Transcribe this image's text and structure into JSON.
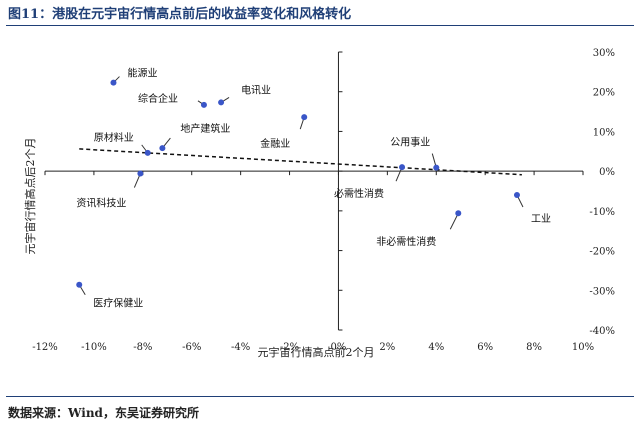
{
  "header": {
    "title": "图11：港股在元宇宙行情高点前后的收益率变化和风格转化"
  },
  "footer": {
    "source": "数据来源：Wind，东吴证券研究所"
  },
  "colors": {
    "title": "#1f3f77",
    "point": "#3a56c8",
    "axis": "#222222",
    "trend": "#111111"
  },
  "chart_data": {
    "type": "scatter",
    "title": "",
    "xlabel": "元宇宙行情高点前2个月",
    "ylabel": "元宇宙行情高点后2个月",
    "xlim": [
      -0.12,
      0.1
    ],
    "ylim": [
      -0.4,
      0.3
    ],
    "x_ticks": [
      "-12%",
      "-10%",
      "-8%",
      "-6%",
      "-4%",
      "-2%",
      "0%",
      "2%",
      "4%",
      "6%",
      "8%",
      "10%"
    ],
    "y_ticks": [
      "30%",
      "20%",
      "10%",
      "0%",
      "-10%",
      "-20%",
      "-30%",
      "-40%"
    ],
    "grid": false,
    "trendline": {
      "style": "dashed",
      "from": [
        -0.106,
        0.056
      ],
      "to": [
        0.075,
        -0.009
      ]
    },
    "points": [
      {
        "label": "能源业",
        "x": -0.092,
        "y": 0.223
      },
      {
        "label": "综合企业",
        "x": -0.055,
        "y": 0.167
      },
      {
        "label": "电讯业",
        "x": -0.048,
        "y": 0.173
      },
      {
        "label": "金融业",
        "x": -0.014,
        "y": 0.136
      },
      {
        "label": "原材料业",
        "x": -0.078,
        "y": 0.046
      },
      {
        "label": "地产建筑业",
        "x": -0.072,
        "y": 0.058
      },
      {
        "label": "资讯科技业",
        "x": -0.081,
        "y": -0.006
      },
      {
        "label": "公用事业",
        "x": 0.04,
        "y": 0.009
      },
      {
        "label": "必需性消费",
        "x": 0.026,
        "y": 0.01
      },
      {
        "label": "工业",
        "x": 0.073,
        "y": -0.06
      },
      {
        "label": "非必需性消费",
        "x": 0.049,
        "y": -0.106
      },
      {
        "label": "医疗保健业",
        "x": -0.106,
        "y": -0.286
      }
    ]
  }
}
